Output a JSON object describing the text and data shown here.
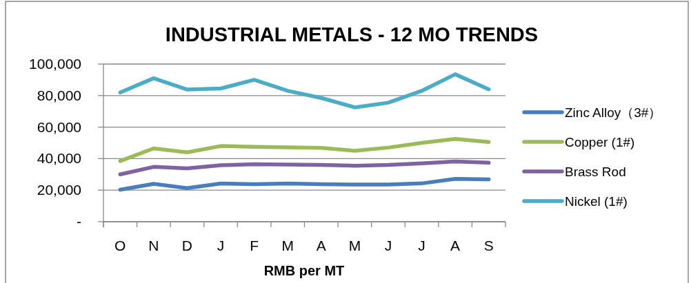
{
  "chart_data": {
    "type": "line",
    "title": "INDUSTRIAL METALS - 12 MO TRENDS",
    "xlabel": "RMB per MT",
    "categories": [
      "O",
      "N",
      "D",
      "J",
      "F",
      "M",
      "A",
      "M",
      "J",
      "J",
      "A",
      "S"
    ],
    "series": [
      {
        "name": "Zinc Alloy（3#）",
        "color": "#4a7ebb",
        "values": [
          20300,
          24000,
          21300,
          24200,
          23800,
          24200,
          23800,
          23600,
          23600,
          24300,
          27200,
          26900
        ]
      },
      {
        "name": "Copper (1#)",
        "color": "#9bbb59",
        "values": [
          38500,
          46500,
          44000,
          48000,
          47500,
          47200,
          46800,
          45000,
          47000,
          50000,
          52500,
          50500
        ]
      },
      {
        "name": "Brass Rod",
        "color": "#7f62a1",
        "values": [
          30000,
          34800,
          33800,
          35800,
          36500,
          36200,
          36000,
          35500,
          36000,
          37000,
          38200,
          37400
        ]
      },
      {
        "name": "Nickel (1#)",
        "color": "#4bacc6",
        "values": [
          82000,
          91000,
          83800,
          84500,
          90000,
          83000,
          78500,
          72500,
          75500,
          83000,
          93500,
          84000
        ]
      }
    ],
    "ylim": [
      0,
      100000
    ],
    "yticks": [
      {
        "value": 0,
        "label": "-"
      },
      {
        "value": 20000,
        "label": "20,000"
      },
      {
        "value": 40000,
        "label": "40,000"
      },
      {
        "value": 60000,
        "label": "60,000"
      },
      {
        "value": 80000,
        "label": "80,000"
      },
      {
        "value": 100000,
        "label": "100,000"
      }
    ],
    "grid": "y",
    "legend": "right",
    "marker": "none",
    "line_style": "solid"
  }
}
